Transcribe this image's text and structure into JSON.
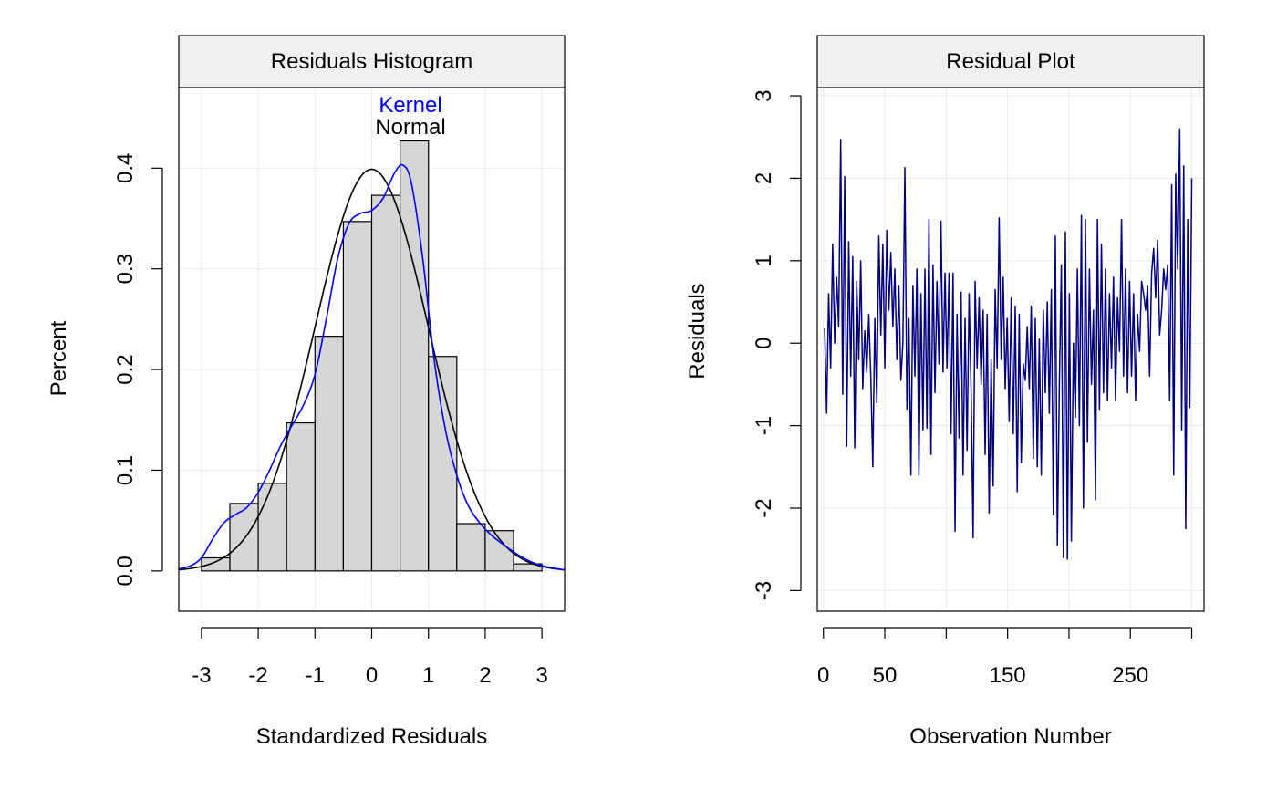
{
  "chart_data": [
    {
      "type": "bar",
      "title": "Residuals Histogram",
      "xlabel": "Standardized Residuals",
      "ylabel": "Percent",
      "xlim": [
        -3.4,
        3.4
      ],
      "ylim": [
        -0.04,
        0.48
      ],
      "xticks": [
        -3,
        -2,
        -1,
        0,
        1,
        2,
        3
      ],
      "xtick_labels": [
        "-3",
        "-2",
        "-1",
        "0",
        "1",
        "2",
        "3"
      ],
      "yticks": [
        0.0,
        0.1,
        0.2,
        0.3,
        0.4
      ],
      "ytick_labels": [
        "0.0",
        "0.1",
        "0.2",
        "0.3",
        "0.4"
      ],
      "grid": true,
      "bins": [
        {
          "x0": -3.0,
          "x1": -2.5,
          "value": 0.013
        },
        {
          "x0": -2.5,
          "x1": -2.0,
          "value": 0.067
        },
        {
          "x0": -2.0,
          "x1": -1.5,
          "value": 0.087
        },
        {
          "x0": -1.5,
          "x1": -1.0,
          "value": 0.147
        },
        {
          "x0": -1.0,
          "x1": -0.5,
          "value": 0.233
        },
        {
          "x0": -0.5,
          "x1": 0.0,
          "value": 0.347
        },
        {
          "x0": 0.0,
          "x1": 0.5,
          "value": 0.373
        },
        {
          "x0": 0.5,
          "x1": 1.0,
          "value": 0.427
        },
        {
          "x0": 1.0,
          "x1": 1.5,
          "value": 0.213
        },
        {
          "x0": 1.5,
          "x1": 2.0,
          "value": 0.047
        },
        {
          "x0": 2.0,
          "x1": 2.5,
          "value": 0.04
        },
        {
          "x0": 2.5,
          "x1": 3.0,
          "value": 0.007
        }
      ],
      "legend": [
        {
          "label": "Kernel",
          "color": "#0000ff"
        },
        {
          "label": "Normal",
          "color": "#000000"
        }
      ],
      "series": [
        {
          "name": "Kernel",
          "color": "#0000ff",
          "x": [
            -3.4,
            -3.2,
            -3.0,
            -2.8,
            -2.6,
            -2.4,
            -2.2,
            -2.0,
            -1.8,
            -1.6,
            -1.4,
            -1.2,
            -1.0,
            -0.8,
            -0.6,
            -0.4,
            -0.2,
            0.0,
            0.2,
            0.4,
            0.55,
            0.7,
            0.9,
            1.1,
            1.3,
            1.5,
            1.7,
            1.9,
            2.1,
            2.3,
            2.5,
            2.7,
            2.9,
            3.1,
            3.4
          ],
          "y": [
            0.002,
            0.005,
            0.013,
            0.032,
            0.048,
            0.056,
            0.063,
            0.078,
            0.1,
            0.125,
            0.145,
            0.165,
            0.195,
            0.25,
            0.31,
            0.345,
            0.355,
            0.358,
            0.37,
            0.395,
            0.403,
            0.385,
            0.31,
            0.21,
            0.14,
            0.095,
            0.065,
            0.048,
            0.036,
            0.027,
            0.019,
            0.012,
            0.007,
            0.004,
            0.001
          ]
        },
        {
          "name": "Normal",
          "color": "#000000",
          "distribution": "normal",
          "mean": 0,
          "sd": 1
        }
      ]
    },
    {
      "type": "line",
      "title": "Residual Plot",
      "xlabel": "Observation Number",
      "ylabel": "Residuals",
      "xlim": [
        -5,
        310
      ],
      "ylim": [
        -3.25,
        3.1
      ],
      "xticks": [
        0,
        50,
        100,
        150,
        200,
        250,
        300
      ],
      "xtick_labels": [
        "0",
        "50",
        "",
        "150",
        "",
        "250",
        ""
      ],
      "yticks": [
        -3,
        -2,
        -1,
        0,
        1,
        2,
        3
      ],
      "ytick_labels": [
        "-3",
        "-2",
        "-1",
        "0",
        "1",
        "2",
        "3"
      ],
      "grid": true,
      "color": "#000080",
      "series": [
        {
          "x_start": 1,
          "values": [
            0.18,
            -0.85,
            0.6,
            -0.3,
            1.2,
            0.0,
            0.8,
            0.2,
            2.47,
            -0.62,
            2.02,
            -1.25,
            1.23,
            -0.4,
            1.05,
            -1.27,
            0.75,
            -0.2,
            1.0,
            -0.55,
            0.15,
            -0.35,
            0.35,
            -0.4,
            -1.5,
            0.3,
            -0.72,
            1.3,
            0.1,
            1.2,
            -0.3,
            1.37,
            0.4,
            1.1,
            0.2,
            0.9,
            -0.2,
            0.7,
            -0.45,
            0.0,
            2.13,
            -0.8,
            0.3,
            -1.6,
            0.7,
            -0.4,
            0.9,
            -1.6,
            0.6,
            -1.05,
            0.9,
            -1.03,
            1.5,
            -1.35,
            0.95,
            -0.6,
            0.75,
            -0.25,
            1.48,
            -0.35,
            0.85,
            -0.3,
            0.85,
            -1.1,
            0.85,
            -2.28,
            0.35,
            -1.15,
            0.62,
            -1.6,
            0.3,
            -1.3,
            0.6,
            -0.58,
            -2.36,
            0.75,
            -0.3,
            0.55,
            -0.5,
            0.4,
            -1.35,
            0.35,
            -2.06,
            -0.2,
            -1.73,
            0.65,
            -0.3,
            1.52,
            -0.2,
            0.8,
            -0.55,
            0.3,
            -0.95,
            0.55,
            -1.1,
            0.45,
            -1.8,
            0.35,
            -1.45,
            -0.25,
            -0.45,
            0.2,
            -0.55,
            0.45,
            -1.4,
            0.3,
            -1.5,
            0.05,
            -1.6,
            0.4,
            -0.6,
            0.5,
            -0.85,
            0.65,
            -2.08,
            1.3,
            -2.45,
            -0.5,
            0.95,
            -2.6,
            1.35,
            -2.62,
            0.6,
            -2.4,
            0.0,
            -0.9,
            0.9,
            -1.0,
            1.55,
            -2.0,
            1.5,
            -1.2,
            0.9,
            -0.5,
            0.4,
            -1.9,
            1.5,
            -0.8,
            1.2,
            -0.6,
            0.9,
            -0.7,
            0.6,
            -0.3,
            0.8,
            -0.7,
            0.55,
            -0.1,
            1.5,
            -0.4,
            0.9,
            -0.6,
            0.75,
            -0.4,
            0.6,
            -0.7,
            0.35,
            -0.1,
            0.75,
            0.6,
            0.4,
            0.7,
            -0.4,
            0.85,
            1.15,
            0.55,
            1.25,
            0.1,
            0.4,
            0.9,
            0.65,
            0.95,
            -0.7,
            1.92,
            -1.6,
            2.05,
            0.9,
            2.6,
            -1.05,
            2.15,
            -2.25,
            1.5,
            -0.78,
            2.0
          ]
        }
      ]
    }
  ]
}
